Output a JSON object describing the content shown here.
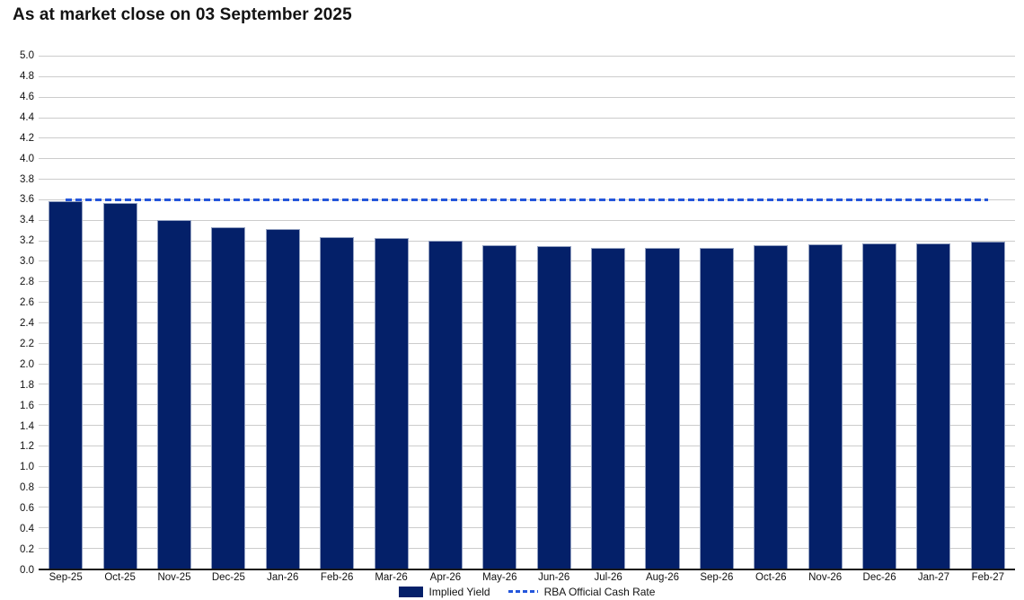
{
  "title": "As at market close on 03 September 2025",
  "colors": {
    "bar_fill": "#042069",
    "bar_border": "#93a1c1",
    "rba_line": "#2456db",
    "gridline": "#cccccc",
    "axis_line": "#1a1a1a"
  },
  "legend": {
    "implied_yield_label": "Implied Yield",
    "rba_label": "RBA Official Cash Rate"
  },
  "chart_data": {
    "type": "bar",
    "title": "As at market close on 03 September 2025",
    "categories": [
      "Sep-25",
      "Oct-25",
      "Nov-25",
      "Dec-25",
      "Jan-26",
      "Feb-26",
      "Mar-26",
      "Apr-26",
      "May-26",
      "Jun-26",
      "Jul-26",
      "Aug-26",
      "Sep-26",
      "Oct-26",
      "Nov-26",
      "Dec-26",
      "Jan-27",
      "Feb-27"
    ],
    "series": [
      {
        "name": "Implied Yield",
        "type": "bar",
        "values": [
          3.58,
          3.56,
          3.4,
          3.33,
          3.31,
          3.23,
          3.22,
          3.2,
          3.15,
          3.14,
          3.13,
          3.13,
          3.13,
          3.15,
          3.16,
          3.17,
          3.17,
          3.19
        ]
      },
      {
        "name": "RBA Official Cash Rate",
        "type": "line",
        "style": "dashed",
        "value": 3.6
      }
    ],
    "xlabel": "",
    "ylabel": "",
    "ylim": [
      0,
      5
    ],
    "ytick_step": 0.2,
    "y_ticks": [
      "5.0",
      "4.8",
      "4.6",
      "4.4",
      "4.2",
      "4.0",
      "3.8",
      "3.6",
      "3.4",
      "3.2",
      "3.0",
      "2.8",
      "2.6",
      "2.4",
      "2.2",
      "2.0",
      "1.8",
      "1.6",
      "1.4",
      "1.2",
      "1.0",
      "0.8",
      "0.6",
      "0.4",
      "0.2",
      "0.0"
    ],
    "grid": true,
    "legend_position": "bottom"
  }
}
